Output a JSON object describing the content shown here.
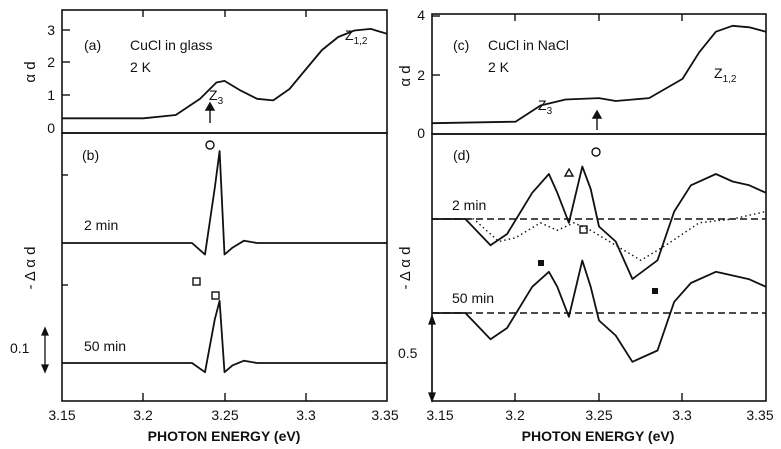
{
  "figure": {
    "x_axis_label": "PHOTON ENERGY (eV)",
    "x_ticks": [
      "3.15",
      "3.2",
      "3.25",
      "3.3",
      "3.35"
    ]
  },
  "chart_data": [
    {
      "id": "a",
      "type": "line",
      "panel_label": "(a)",
      "text": "CuCl in glass",
      "temp": "2 K",
      "ylabel": "α d",
      "ylim": [
        0,
        3.2
      ],
      "yticks": [
        "0",
        "1",
        "2",
        "3"
      ],
      "annotations": {
        "z3": "Z",
        "z3_sub": "3",
        "z12": "Z",
        "z12_sub": "1,2"
      },
      "series": [
        {
          "x": [
            3.15,
            3.2,
            3.22,
            3.235,
            3.245,
            3.25,
            3.26,
            3.27,
            3.28,
            3.29,
            3.3,
            3.31,
            3.32,
            3.33,
            3.34,
            3.35
          ],
          "y": [
            0.3,
            0.3,
            0.4,
            0.9,
            1.4,
            1.45,
            1.15,
            0.9,
            0.85,
            1.2,
            1.8,
            2.4,
            2.8,
            3.0,
            3.05,
            2.9
          ]
        }
      ]
    },
    {
      "id": "b",
      "type": "line",
      "panel_label": "(b)",
      "ylabel": "- Δ α d",
      "scale_label": "0.1",
      "series": [
        {
          "name": "2 min",
          "x": [
            3.15,
            3.23,
            3.238,
            3.244,
            3.247,
            3.25,
            3.255,
            3.262,
            3.27,
            3.35
          ],
          "y": [
            0,
            0,
            -0.25,
            1.2,
            2.0,
            -0.25,
            -0.1,
            0.05,
            0,
            0
          ]
        },
        {
          "name": "50 min",
          "x": [
            3.15,
            3.23,
            3.238,
            3.244,
            3.247,
            3.25,
            3.255,
            3.262,
            3.27,
            3.35
          ],
          "y": [
            0,
            0,
            -0.2,
            0.95,
            1.35,
            -0.2,
            -0.05,
            0.05,
            0,
            0
          ]
        }
      ]
    },
    {
      "id": "c",
      "type": "line",
      "panel_label": "(c)",
      "text": "CuCl in NaCl",
      "temp": "2 K",
      "ylabel": "α d",
      "ylim": [
        0,
        4.1
      ],
      "yticks": [
        "0",
        "2",
        "4"
      ],
      "annotations": {
        "z3": "Z",
        "z3_sub": "3",
        "z12": "Z",
        "z12_sub": "1,2"
      },
      "series": [
        {
          "x": [
            3.15,
            3.2,
            3.215,
            3.23,
            3.25,
            3.26,
            3.28,
            3.3,
            3.31,
            3.32,
            3.33,
            3.34,
            3.35
          ],
          "y": [
            0.3,
            0.35,
            0.9,
            1.1,
            1.15,
            1.05,
            1.15,
            1.8,
            2.7,
            3.4,
            3.6,
            3.55,
            3.4
          ]
        }
      ]
    },
    {
      "id": "d",
      "type": "line",
      "panel_label": "(d)",
      "ylabel": "- Δ α d",
      "scale_label": "0.5",
      "series": [
        {
          "name": "2 min",
          "x": [
            3.15,
            3.17,
            3.185,
            3.195,
            3.21,
            3.22,
            3.225,
            3.232,
            3.24,
            3.245,
            3.25,
            3.26,
            3.27,
            3.285,
            3.295,
            3.305,
            3.32,
            3.33,
            3.34,
            3.35
          ],
          "y": [
            0,
            0,
            -0.35,
            -0.2,
            0.35,
            0.6,
            0.35,
            -0.05,
            0.7,
            0.4,
            -0.1,
            -0.3,
            -0.8,
            -0.55,
            0.1,
            0.45,
            0.6,
            0.5,
            0.45,
            0.35
          ]
        },
        {
          "name": "2 min dotted",
          "x": [
            3.15,
            3.175,
            3.19,
            3.2,
            3.215,
            3.225,
            3.235,
            3.245,
            3.26,
            3.275,
            3.29,
            3.31,
            3.33,
            3.35
          ],
          "y": [
            0,
            0,
            -0.3,
            -0.25,
            -0.05,
            -0.15,
            -0.05,
            -0.15,
            -0.35,
            -0.55,
            -0.35,
            -0.05,
            0.0,
            0.1
          ]
        },
        {
          "name": "50 min",
          "x": [
            3.15,
            3.17,
            3.185,
            3.195,
            3.21,
            3.22,
            3.225,
            3.232,
            3.24,
            3.245,
            3.25,
            3.26,
            3.27,
            3.285,
            3.295,
            3.305,
            3.32,
            3.33,
            3.34,
            3.35
          ],
          "y": [
            0,
            0,
            -0.35,
            -0.2,
            0.35,
            0.55,
            0.35,
            -0.05,
            0.7,
            0.35,
            -0.1,
            -0.3,
            -0.65,
            -0.5,
            0.15,
            0.4,
            0.55,
            0.5,
            0.45,
            0.35
          ]
        }
      ]
    }
  ]
}
